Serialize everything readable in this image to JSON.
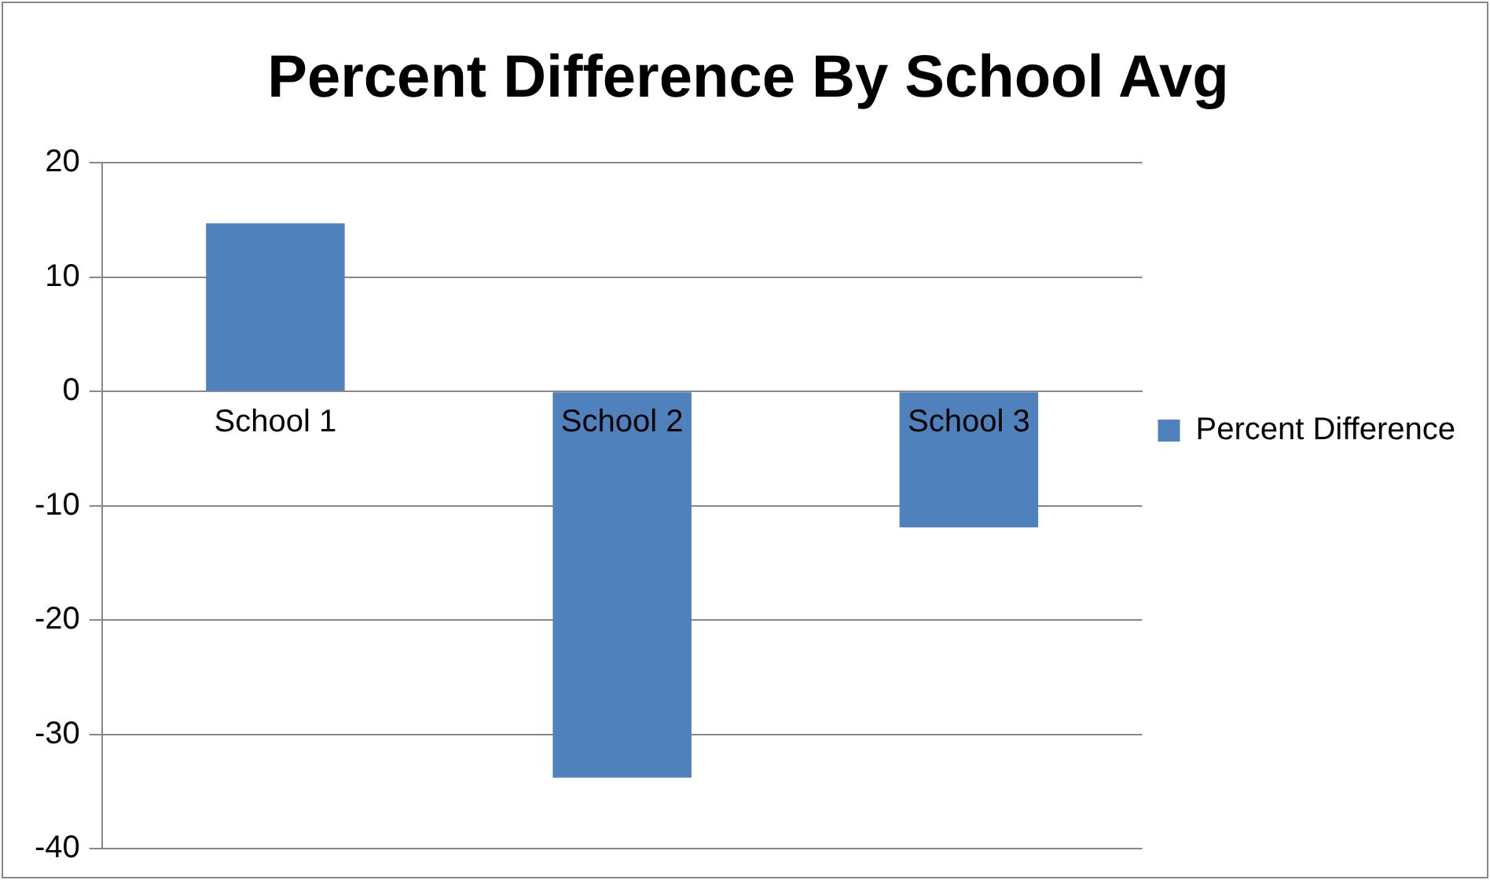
{
  "chart_data": {
    "type": "bar",
    "title": "Percent Difference By School Avg",
    "categories": [
      "School 1",
      "School 2",
      "School 3"
    ],
    "series": [
      {
        "name": "Percent Difference",
        "color": "#4f81bd",
        "values": [
          14.7,
          -33.8,
          -11.9
        ]
      }
    ],
    "ylim": [
      -40,
      20
    ],
    "yticks": [
      -40,
      -30,
      -20,
      -10,
      0,
      10,
      20
    ],
    "grid": "y",
    "legend": "right"
  }
}
